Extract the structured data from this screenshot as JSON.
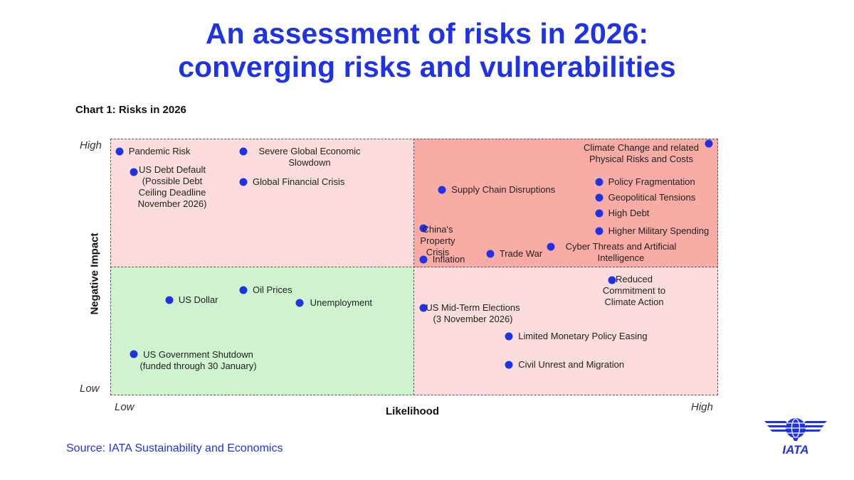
{
  "title_line1": "An assessment of risks in 2026:",
  "title_line2": "converging risks and vulnerabilities",
  "source": "Source: IATA Sustainability and Economics",
  "logo_text": "IATA",
  "colors": {
    "accent": "#1f33e6",
    "quadrant_low_risk": "#cff2cf",
    "quadrant_mid_risk": "#fcdcdc",
    "quadrant_high_risk": "#f8aca5"
  },
  "chart_data": {
    "type": "scatter",
    "title": "Chart 1: Risks in 2026",
    "xlabel": "Likelihood",
    "ylabel": "Negative Impact",
    "x_ticks": [
      "Low",
      "High"
    ],
    "y_ticks": [
      "Low",
      "High"
    ],
    "xlim": [
      0,
      100
    ],
    "ylim": [
      0,
      100
    ],
    "grid": false,
    "quadrants": "2x2",
    "points": [
      {
        "label": "Pandemic Risk",
        "x": 1.5,
        "y": 95
      },
      {
        "label": "US Debt Default (Possible Debt Ceiling Deadline November 2026)",
        "x": 3.9,
        "y": 87
      },
      {
        "label": "Severe Global Economic Slowdown",
        "x": 21.9,
        "y": 95
      },
      {
        "label": "Global Financial Crisis",
        "x": 21.9,
        "y": 83
      },
      {
        "label": "Supply Chain Disruptions",
        "x": 54.6,
        "y": 80
      },
      {
        "label": "China's Property Crisis",
        "x": 51.5,
        "y": 65
      },
      {
        "label": "Inflation",
        "x": 51.5,
        "y": 53
      },
      {
        "label": "Trade War",
        "x": 62.5,
        "y": 55
      },
      {
        "label": "Cyber Threats and Artificial Intelligence",
        "x": 72.5,
        "y": 58
      },
      {
        "label": "Climate Change and related Physical Risks and Costs",
        "x": 98.5,
        "y": 98
      },
      {
        "label": "Policy Fragmentation",
        "x": 80.4,
        "y": 83
      },
      {
        "label": "Geopolitical Tensions",
        "x": 80.4,
        "y": 77
      },
      {
        "label": "High Debt",
        "x": 80.4,
        "y": 71
      },
      {
        "label": "Higher Military Spending",
        "x": 80.4,
        "y": 64
      },
      {
        "label": "US Dollar",
        "x": 9.7,
        "y": 37
      },
      {
        "label": "Oil Prices",
        "x": 21.9,
        "y": 41
      },
      {
        "label": "Unemployment",
        "x": 31.1,
        "y": 36
      },
      {
        "label": "US Government Shutdown (funded through 30 January)",
        "x": 3.9,
        "y": 16
      },
      {
        "label": "Reduced Commitment to Climate Action",
        "x": 82.6,
        "y": 45
      },
      {
        "label": "US Mid-Term Elections (3 November 2026)",
        "x": 51.5,
        "y": 34
      },
      {
        "label": "Limited Monetary Policy Easing",
        "x": 65.6,
        "y": 23
      },
      {
        "label": "Civil Unrest and Migration",
        "x": 65.6,
        "y": 12
      }
    ]
  }
}
